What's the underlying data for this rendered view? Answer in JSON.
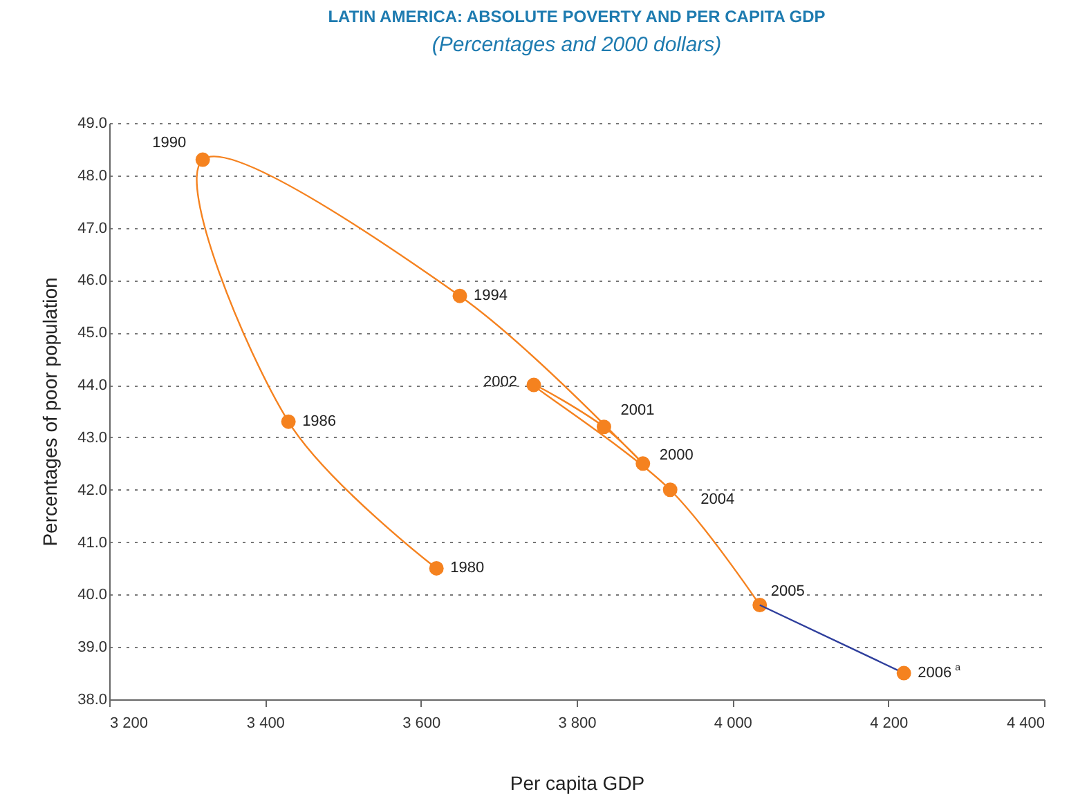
{
  "chart_data": {
    "type": "line",
    "title": "LATIN AMERICA:  ABSOLUTE POVERTY AND PER CAPITA GDP",
    "subtitle": "(Percentages and 2000 dollars)",
    "xlabel": "Per capita GDP",
    "ylabel": "Percentages of poor population",
    "series": [
      {
        "color": "#f5821f",
        "marker": "circle",
        "x": [
          3620,
          3430,
          3320,
          3650,
          3885,
          3835,
          3745,
          3920,
          4035
        ],
        "values": [
          40.5,
          43.3,
          48.3,
          45.7,
          42.5,
          43.2,
          44.0,
          42.0,
          39.8
        ]
      },
      {
        "color": "#2e3e9c",
        "marker": "none",
        "x": [
          4035,
          4220
        ],
        "values": [
          39.8,
          38.5
        ]
      },
      {
        "type": "scatter",
        "color": "#f5821f",
        "marker": "circle",
        "x": [
          4220
        ],
        "values": [
          38.5
        ]
      }
    ],
    "annotations": [
      {
        "text": "1980",
        "x": 3620,
        "y": 40.5
      },
      {
        "text": "1986",
        "x": 3430,
        "y": 43.3
      },
      {
        "text": "1990",
        "x": 3320,
        "y": 48.3
      },
      {
        "text": "1994",
        "x": 3650,
        "y": 45.7
      },
      {
        "text": "2000",
        "x": 3885,
        "y": 42.5
      },
      {
        "text": "2001",
        "x": 3835,
        "y": 43.2
      },
      {
        "text": "2002",
        "x": 3745,
        "y": 44.0
      },
      {
        "text": "2004",
        "x": 3920,
        "y": 42.0
      },
      {
        "text": "2005",
        "x": 4035,
        "y": 39.8
      },
      {
        "text": "2006$^{a}$",
        "x": 4220,
        "y": 38.5
      }
    ],
    "xlim": [
      3200,
      4400
    ],
    "xticks": [
      {
        "value": 3200,
        "label": "3 200"
      },
      {
        "value": 3400,
        "label": "3 400"
      },
      {
        "value": 3600,
        "label": "3 600"
      },
      {
        "value": 3800,
        "label": "3 800"
      },
      {
        "value": 4000,
        "label": "4 000"
      },
      {
        "value": 4200,
        "label": "4 200"
      },
      {
        "value": 4400,
        "label": "4 400"
      }
    ],
    "ylim": [
      38,
      49
    ],
    "yticks": [
      {
        "value": 38,
        "label": "38.0"
      },
      {
        "value": 39,
        "label": "39.0"
      },
      {
        "value": 40,
        "label": "40.0"
      },
      {
        "value": 41,
        "label": "41.0"
      },
      {
        "value": 42,
        "label": "42.0"
      },
      {
        "value": 43,
        "label": "43.0"
      },
      {
        "value": 44,
        "label": "44.0"
      },
      {
        "value": 45,
        "label": "45.0"
      },
      {
        "value": 46,
        "label": "46.0"
      },
      {
        "value": 47,
        "label": "47.0"
      },
      {
        "value": 48,
        "label": "48.0"
      },
      {
        "value": 49,
        "label": "49.0"
      }
    ],
    "grid": "y"
  }
}
